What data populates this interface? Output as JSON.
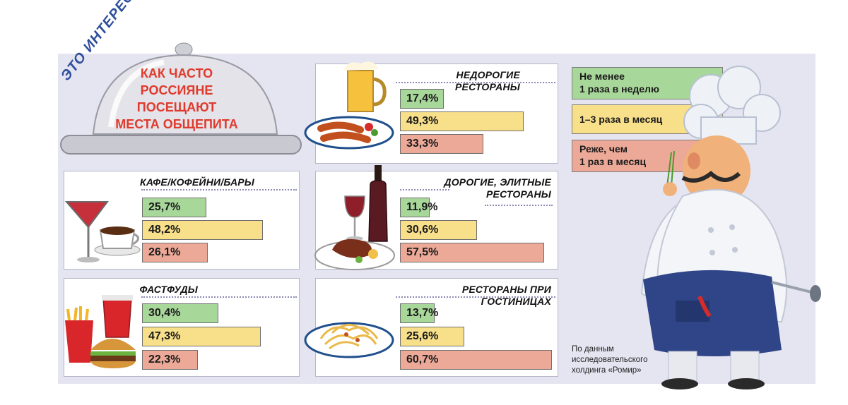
{
  "badge": "ЭТО ИНТЕРЕСНО",
  "headline": "КАК ЧАСТО\nРОССИЯНЕ\nПОСЕЩАЮТ\nМЕСТА ОБЩЕПИТА",
  "legend": [
    {
      "label": "Не менее\n1 раза в неделю",
      "color": "#a8d79a"
    },
    {
      "label": "1–3 раза в месяц",
      "color": "#f8df8a"
    },
    {
      "label": "Реже, чем\n1 раз в месяц",
      "color": "#eda998"
    }
  ],
  "source": "По данным\nисследовательского\nхолдинга «Ромир»",
  "chart_data": {
    "type": "bar",
    "series_names": [
      "Не менее 1 раза в неделю",
      "1–3 раза в месяц",
      "Реже, чем 1 раз в месяц"
    ],
    "colors": [
      "#a8d79a",
      "#f8df8a",
      "#eda998"
    ],
    "unit": "%",
    "ylim": [
      0,
      70
    ],
    "groups": [
      {
        "title": "КАФЕ/КОФЕЙНИ/БАРЫ",
        "values": [
          25.7,
          48.2,
          26.1
        ],
        "labels": [
          "25,7%",
          "48,2%",
          "26,1%"
        ]
      },
      {
        "title": "ФАСТФУДЫ",
        "values": [
          30.4,
          47.3,
          22.3
        ],
        "labels": [
          "30,4%",
          "47,3%",
          "22,3%"
        ]
      },
      {
        "title": "НЕДОРОГИЕ РЕСТОРАНЫ",
        "values": [
          17.4,
          49.3,
          33.3
        ],
        "labels": [
          "17,4%",
          "49,3%",
          "33,3%"
        ]
      },
      {
        "title": "ДОРОГИЕ, ЭЛИТНЫЕ\nРЕСТОРАНЫ",
        "values": [
          11.9,
          30.6,
          57.5
        ],
        "labels": [
          "11,9%",
          "30,6%",
          "57,5%"
        ]
      },
      {
        "title": "РЕСТОРАНЫ ПРИ ГОСТИНИЦАХ",
        "values": [
          13.7,
          25.6,
          60.7
        ],
        "labels": [
          "13,7%",
          "25,6%",
          "60,7%"
        ]
      }
    ]
  }
}
